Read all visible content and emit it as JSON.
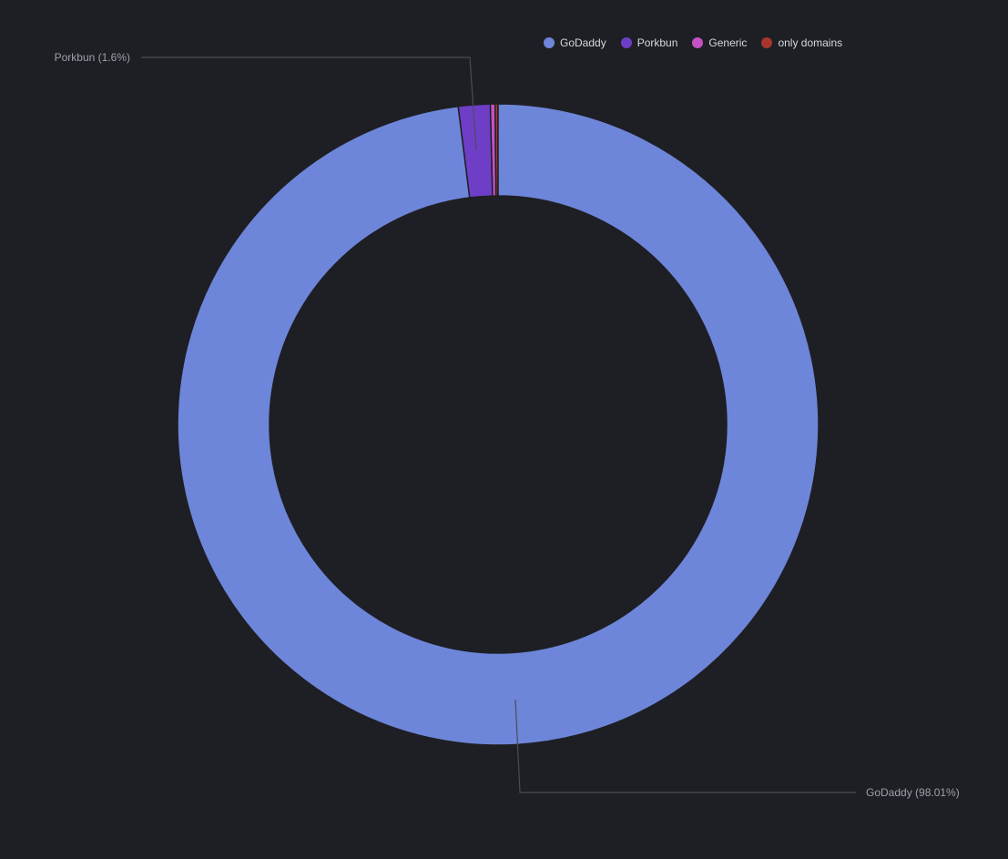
{
  "chart_data": {
    "type": "pie",
    "variant": "donut",
    "series": [
      {
        "name": "GoDaddy",
        "value": 98.01,
        "color": "#6e86d9"
      },
      {
        "name": "Porkbun",
        "value": 1.6,
        "color": "#6e3fc6"
      },
      {
        "name": "Generic",
        "value": 0.24,
        "color": "#c352c2"
      },
      {
        "name": "only domains",
        "value": 0.15,
        "color": "#a8352d"
      }
    ],
    "labels": [
      {
        "series": "Porkbun",
        "text": "Porkbun (1.6%)"
      },
      {
        "series": "GoDaddy",
        "text": "GoDaddy (98.01%)"
      }
    ],
    "legend_position": "top-right",
    "background": "#1e1f25"
  }
}
